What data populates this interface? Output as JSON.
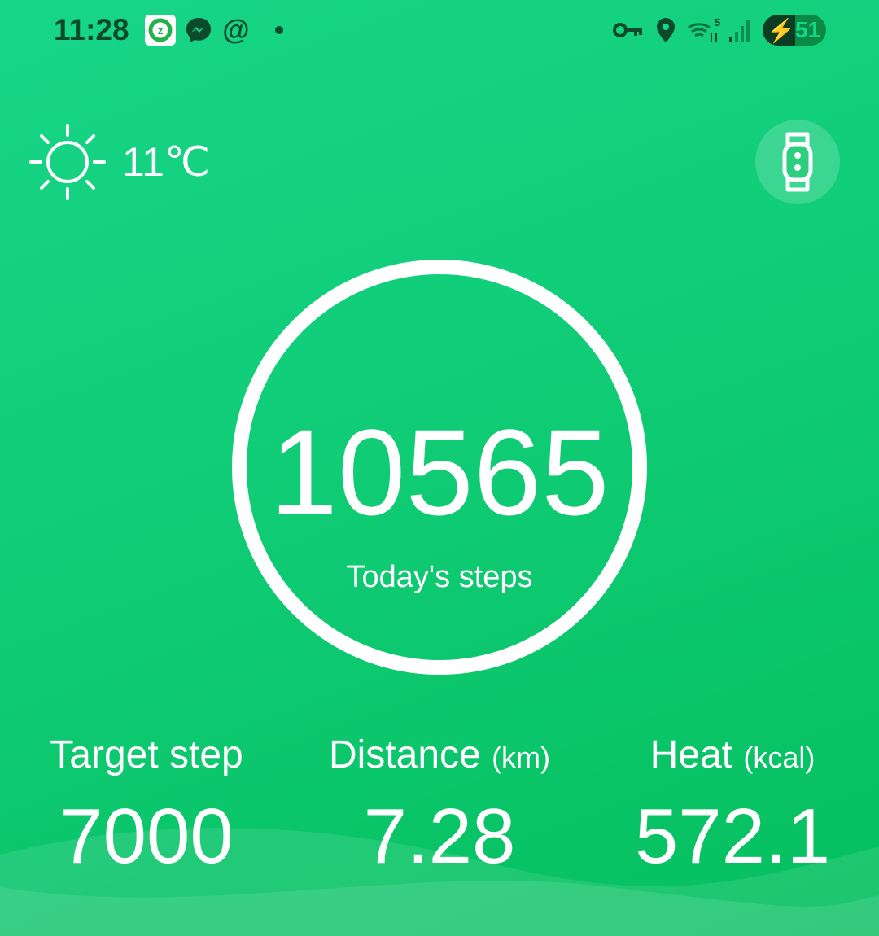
{
  "status_bar": {
    "time": "11:28",
    "battery": "51",
    "network_badge": "5",
    "icons": [
      "zepp-app-icon",
      "messenger-icon",
      "threads-icon",
      "notification-dot",
      "vpn-key-icon",
      "location-icon",
      "wifi-icon",
      "signal-icon",
      "battery-charging-icon"
    ]
  },
  "weather": {
    "icon": "sun-icon",
    "temperature": "11℃"
  },
  "device_button": {
    "icon": "smart-band-icon"
  },
  "steps": {
    "value": "10565",
    "label": "Today's steps"
  },
  "stats": [
    {
      "label": "Target step",
      "unit": "",
      "value": "7000"
    },
    {
      "label": "Distance",
      "unit": "(km)",
      "value": "7.28"
    },
    {
      "label": "Heat",
      "unit": "(kcal)",
      "value": "572.1"
    }
  ],
  "colors": {
    "background": "#10cc76",
    "accent": "#ffffff",
    "status_icons": "#0b4a2a"
  }
}
